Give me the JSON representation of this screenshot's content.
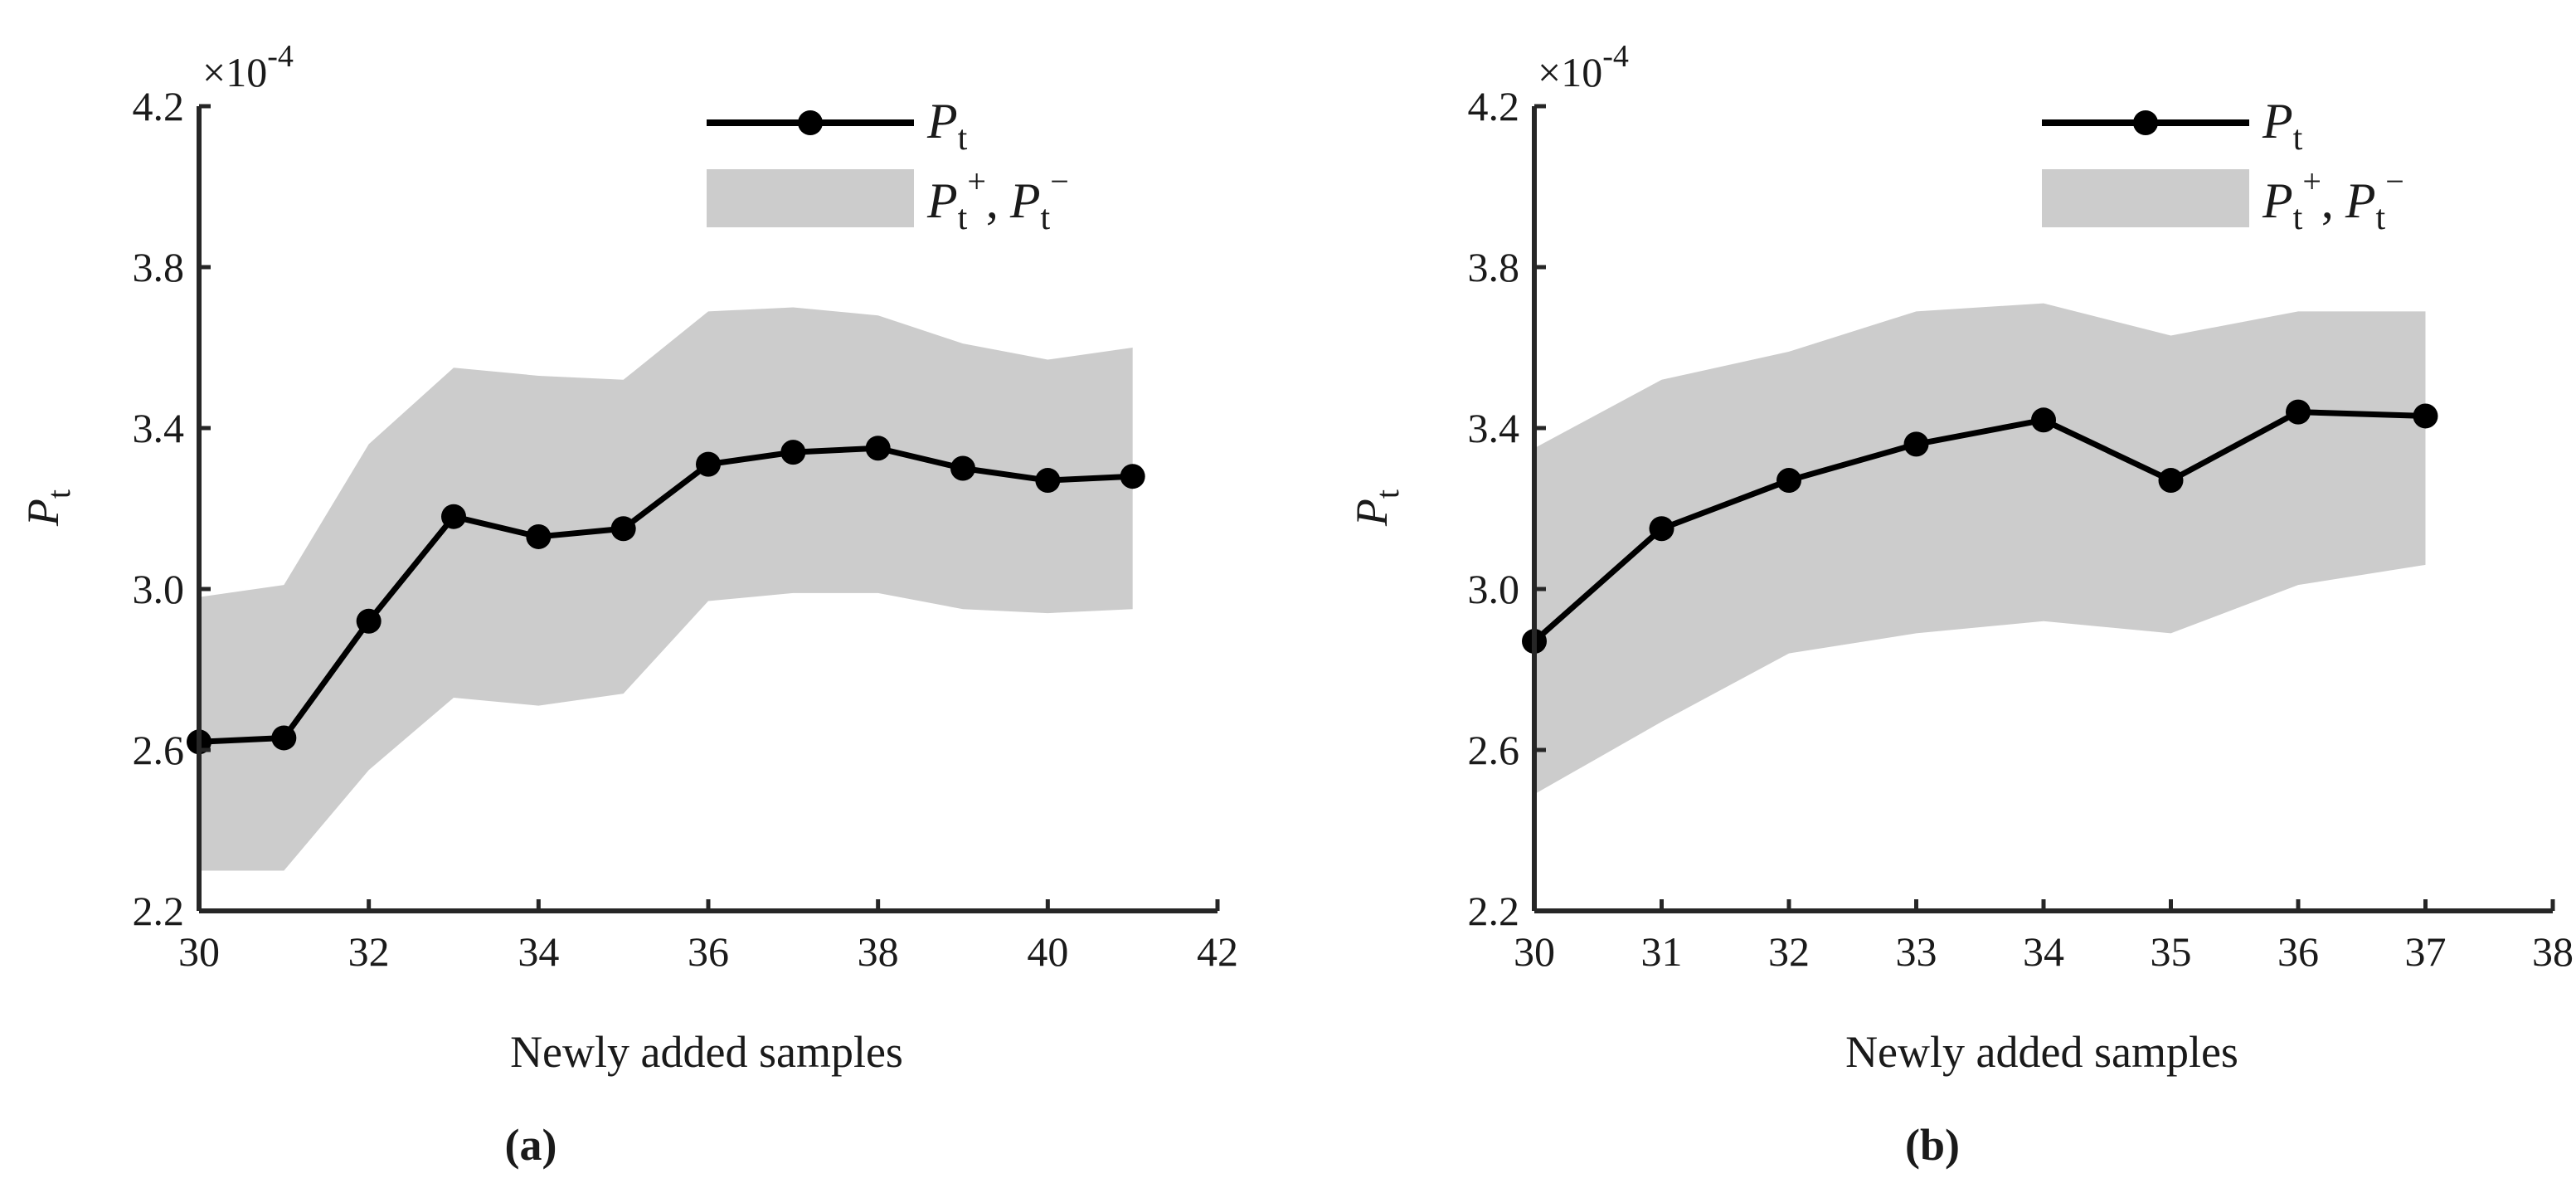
{
  "charts": [
    {
      "caption": "(a)",
      "xlabel": "Newly added samples",
      "ylabel_main": "P",
      "ylabel_sub": "t",
      "exponent_prefix": "×10",
      "exponent_power": "-4",
      "x_ticks": [
        "30",
        "32",
        "34",
        "36",
        "38",
        "40",
        "42"
      ],
      "y_ticks": [
        "2.2",
        "2.6",
        "3.0",
        "3.4",
        "3.8",
        "4.2"
      ],
      "legend": {
        "line_main": "P",
        "line_sub": "t",
        "band_main_1": "P",
        "band_sub_1": "t",
        "band_sup_1": "+",
        "band_sep": ",",
        "band_main_2": "P",
        "band_sub_2": "t",
        "band_sup_2": "−"
      }
    },
    {
      "caption": "(b)",
      "xlabel": "Newly added samples",
      "ylabel_main": "P",
      "ylabel_sub": "t",
      "exponent_prefix": "×10",
      "exponent_power": "-4",
      "x_ticks": [
        "30",
        "31",
        "32",
        "33",
        "34",
        "35",
        "36",
        "37",
        "38"
      ],
      "y_ticks": [
        "2.2",
        "2.6",
        "3.0",
        "3.4",
        "3.8",
        "4.2"
      ],
      "legend": {
        "line_main": "P",
        "line_sub": "t",
        "band_main_1": "P",
        "band_sub_1": "t",
        "band_sup_1": "+",
        "band_sep": ",",
        "band_main_2": "P",
        "band_sub_2": "t",
        "band_sup_2": "−"
      }
    }
  ],
  "chart_data": [
    {
      "type": "line",
      "title": "(a)",
      "xlabel": "Newly added samples",
      "ylabel": "P_t",
      "y_scale_factor": "1e-4",
      "xlim": [
        30,
        42
      ],
      "ylim": [
        2.2,
        4.2
      ],
      "x_ticks": [
        30,
        32,
        34,
        36,
        38,
        40,
        42
      ],
      "y_ticks": [
        2.2,
        2.6,
        3.0,
        3.4,
        3.8,
        4.2
      ],
      "legend_position": "top-right",
      "grid": false,
      "x": [
        30,
        31,
        32,
        33,
        34,
        35,
        36,
        37,
        38,
        39,
        40,
        41
      ],
      "series": [
        {
          "name": "P_t",
          "style": "line-with-markers",
          "color": "#000000",
          "values": [
            2.62,
            2.63,
            2.92,
            3.18,
            3.13,
            3.15,
            3.31,
            3.34,
            3.35,
            3.3,
            3.27,
            3.28
          ]
        },
        {
          "name": "P_t+",
          "style": "band-upper",
          "color": "#cccccc",
          "values": [
            2.98,
            3.01,
            3.36,
            3.55,
            3.53,
            3.52,
            3.69,
            3.7,
            3.68,
            3.61,
            3.57,
            3.6
          ]
        },
        {
          "name": "P_t-",
          "style": "band-lower",
          "color": "#cccccc",
          "values": [
            2.3,
            2.3,
            2.55,
            2.73,
            2.71,
            2.74,
            2.97,
            2.99,
            2.99,
            2.95,
            2.94,
            2.95
          ]
        }
      ]
    },
    {
      "type": "line",
      "title": "(b)",
      "xlabel": "Newly added samples",
      "ylabel": "P_t",
      "y_scale_factor": "1e-4",
      "xlim": [
        30,
        38
      ],
      "ylim": [
        2.2,
        4.2
      ],
      "x_ticks": [
        30,
        31,
        32,
        33,
        34,
        35,
        36,
        37,
        38
      ],
      "y_ticks": [
        2.2,
        2.6,
        3.0,
        3.4,
        3.8,
        4.2
      ],
      "legend_position": "top-right",
      "grid": false,
      "x": [
        30,
        31,
        32,
        33,
        34,
        35,
        36,
        37
      ],
      "series": [
        {
          "name": "P_t",
          "style": "line-with-markers",
          "color": "#000000",
          "values": [
            2.87,
            3.15,
            3.27,
            3.36,
            3.42,
            3.27,
            3.44,
            3.43
          ]
        },
        {
          "name": "P_t+",
          "style": "band-upper",
          "color": "#cccccc",
          "values": [
            3.35,
            3.52,
            3.59,
            3.69,
            3.71,
            3.63,
            3.69,
            3.69
          ]
        },
        {
          "name": "P_t-",
          "style": "band-lower",
          "color": "#cccccc",
          "values": [
            2.49,
            2.67,
            2.84,
            2.89,
            2.92,
            2.89,
            3.01,
            3.06
          ]
        }
      ]
    }
  ]
}
